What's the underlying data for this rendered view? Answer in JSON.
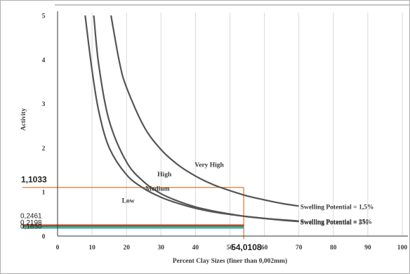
{
  "chart_data": {
    "type": "line",
    "title": "",
    "xlabel": "Percent Clay Sizes (finer than 0,002mm)",
    "ylabel": "Activity",
    "xlim": [
      0,
      100
    ],
    "ylim": [
      0,
      5
    ],
    "x_ticks": [
      "0",
      "10",
      "20",
      "30",
      "40",
      "50",
      "60",
      "70",
      "80",
      "90",
      "100"
    ],
    "y_ticks": [
      "0",
      "1",
      "2",
      "3",
      "4",
      "5"
    ],
    "grid": "vertical",
    "curves": [
      {
        "label": "Swelling Potential = 25%",
        "x": [
          8.0,
          10,
          12,
          15,
          20,
          25,
          30,
          35,
          40,
          45,
          50,
          55,
          60,
          65,
          70
        ],
        "y": [
          5.0,
          3.76,
          2.81,
          2.0,
          1.39,
          1.08,
          0.88,
          0.74,
          0.63,
          0.55,
          0.49,
          0.44,
          0.4,
          0.37,
          0.34
        ]
      },
      {
        "label": "Swelling Potential = 5%",
        "x": [
          10.5,
          12,
          15,
          20,
          25,
          30,
          35,
          40,
          45,
          50,
          55,
          60,
          65,
          70
        ],
        "y": [
          5.0,
          3.85,
          2.61,
          1.68,
          1.23,
          0.96,
          0.79,
          0.66,
          0.57,
          0.5,
          0.44,
          0.4,
          0.36,
          0.33
        ]
      },
      {
        "label": "Swelling Potential = 1,5%",
        "x": [
          15.5,
          18,
          20,
          25,
          30,
          35,
          40,
          45,
          50,
          55,
          60,
          65,
          70
        ],
        "y": [
          5.0,
          3.92,
          3.37,
          2.49,
          1.96,
          1.61,
          1.36,
          1.17,
          1.03,
          0.91,
          0.82,
          0.74,
          0.68
        ]
      }
    ],
    "zone_labels": [
      {
        "text": "Very High",
        "x": 44,
        "y": 1.57
      },
      {
        "text": "High",
        "x": 31,
        "y": 1.35
      },
      {
        "text": "Medium",
        "x": 29,
        "y": 1.03
      },
      {
        "text": "Low",
        "x": 20.5,
        "y": 0.76
      }
    ],
    "reference_lines": [
      {
        "name": "x = 54,0108",
        "label": "54,0108",
        "x": 54.0108,
        "color": "#e0915a"
      },
      {
        "name": "y = 1,1033",
        "label": "1,1033",
        "y": 1.1033,
        "color": "#e0915a"
      },
      {
        "name": "y = 0,2461",
        "label": "0,2461",
        "y": 0.2461,
        "color": "#d62a2a"
      },
      {
        "name": "y = 0,2198",
        "label": "0,2198",
        "y": 0.2198,
        "color": "#4a8f3a"
      },
      {
        "name": "y = 0,1850",
        "label": "0,1850",
        "y": 0.185,
        "color": "#3aa7c4"
      }
    ],
    "colors": {
      "curve": "#555555",
      "grid": "#d9d9d9",
      "axis": "#333333",
      "text": "#3a3a3a",
      "frame": "#b0b0b0"
    }
  }
}
